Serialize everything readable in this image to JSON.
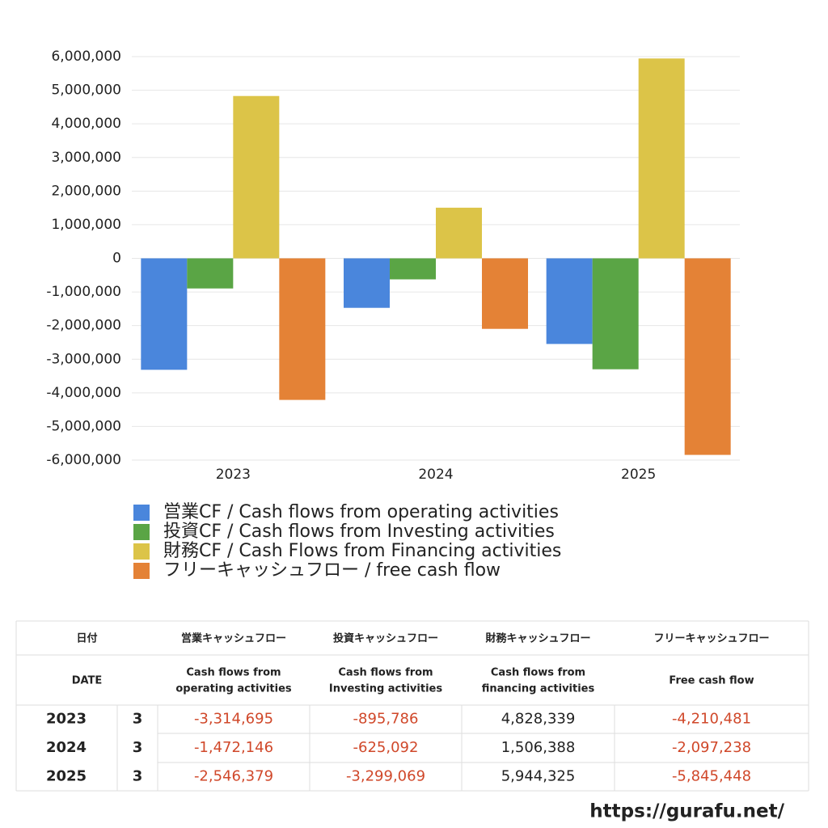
{
  "chart_data": {
    "type": "bar",
    "categories": [
      "2023",
      "2024",
      "2025"
    ],
    "series": [
      {
        "name": "営業CF / Cash flows from operating activities",
        "color": "#4a86dc",
        "values": [
          -3314695,
          -1472146,
          -2546379
        ]
      },
      {
        "name": "投資CF / Cash flows from Investing activities",
        "color": "#5aa545",
        "values": [
          -895786,
          -625092,
          -3299069
        ]
      },
      {
        "name": "財務CF / Cash Flows from Financing activities",
        "color": "#dcc448",
        "values": [
          4828339,
          1506388,
          5944325
        ]
      },
      {
        "name": "フリーキャッシュフロー / free cash flow",
        "color": "#e48236",
        "values": [
          -4210481,
          -2097238,
          -5845448
        ]
      }
    ],
    "ylim": [
      -6000000,
      6000000
    ],
    "yticks": [
      {
        "value": -6000000,
        "label": "-6,000,000"
      },
      {
        "value": -5000000,
        "label": "-5,000,000"
      },
      {
        "value": -4000000,
        "label": "-4,000,000"
      },
      {
        "value": -3000000,
        "label": "-3,000,000"
      },
      {
        "value": -2000000,
        "label": "-2,000,000"
      },
      {
        "value": -1000000,
        "label": "-1,000,000"
      },
      0,
      {
        "value": 1000000,
        "label": "1,000,000"
      },
      {
        "value": 2000000,
        "label": "2,000,000"
      },
      {
        "value": 3000000,
        "label": "3,000,000"
      },
      {
        "value": 4000000,
        "label": "4,000,000"
      },
      {
        "value": 5000000,
        "label": "5,000,000"
      },
      {
        "value": 6000000,
        "label": "6,000,000"
      }
    ],
    "grid": true
  },
  "table": {
    "columns": [
      {
        "ja": "日付",
        "en": [
          "DATE"
        ]
      },
      {
        "ja": "営業キャッシュフロー",
        "en": [
          "Cash flows from",
          "operating activities"
        ]
      },
      {
        "ja": "投資キャッシュフロー",
        "en": [
          "Cash flows from",
          "Investing activities"
        ]
      },
      {
        "ja": "財務キャッシュフロー",
        "en": [
          "Cash flows from",
          "financing activities"
        ]
      },
      {
        "ja": "フリーキャッシュフロー",
        "en": [
          "Free cash flow"
        ]
      }
    ],
    "rows": [
      [
        "2023",
        "3",
        "-3,314,695",
        "-895,786",
        "4,828,339",
        "-4,210,481"
      ],
      [
        "2024",
        "3",
        "-1,472,146",
        "-625,092",
        "1,506,388",
        "-2,097,238"
      ],
      [
        "2025",
        "3",
        "-2,546,379",
        "-3,299,069",
        "5,944,325",
        "-5,845,448"
      ]
    ]
  },
  "footer": {
    "url": "https://gurafu.net/"
  }
}
